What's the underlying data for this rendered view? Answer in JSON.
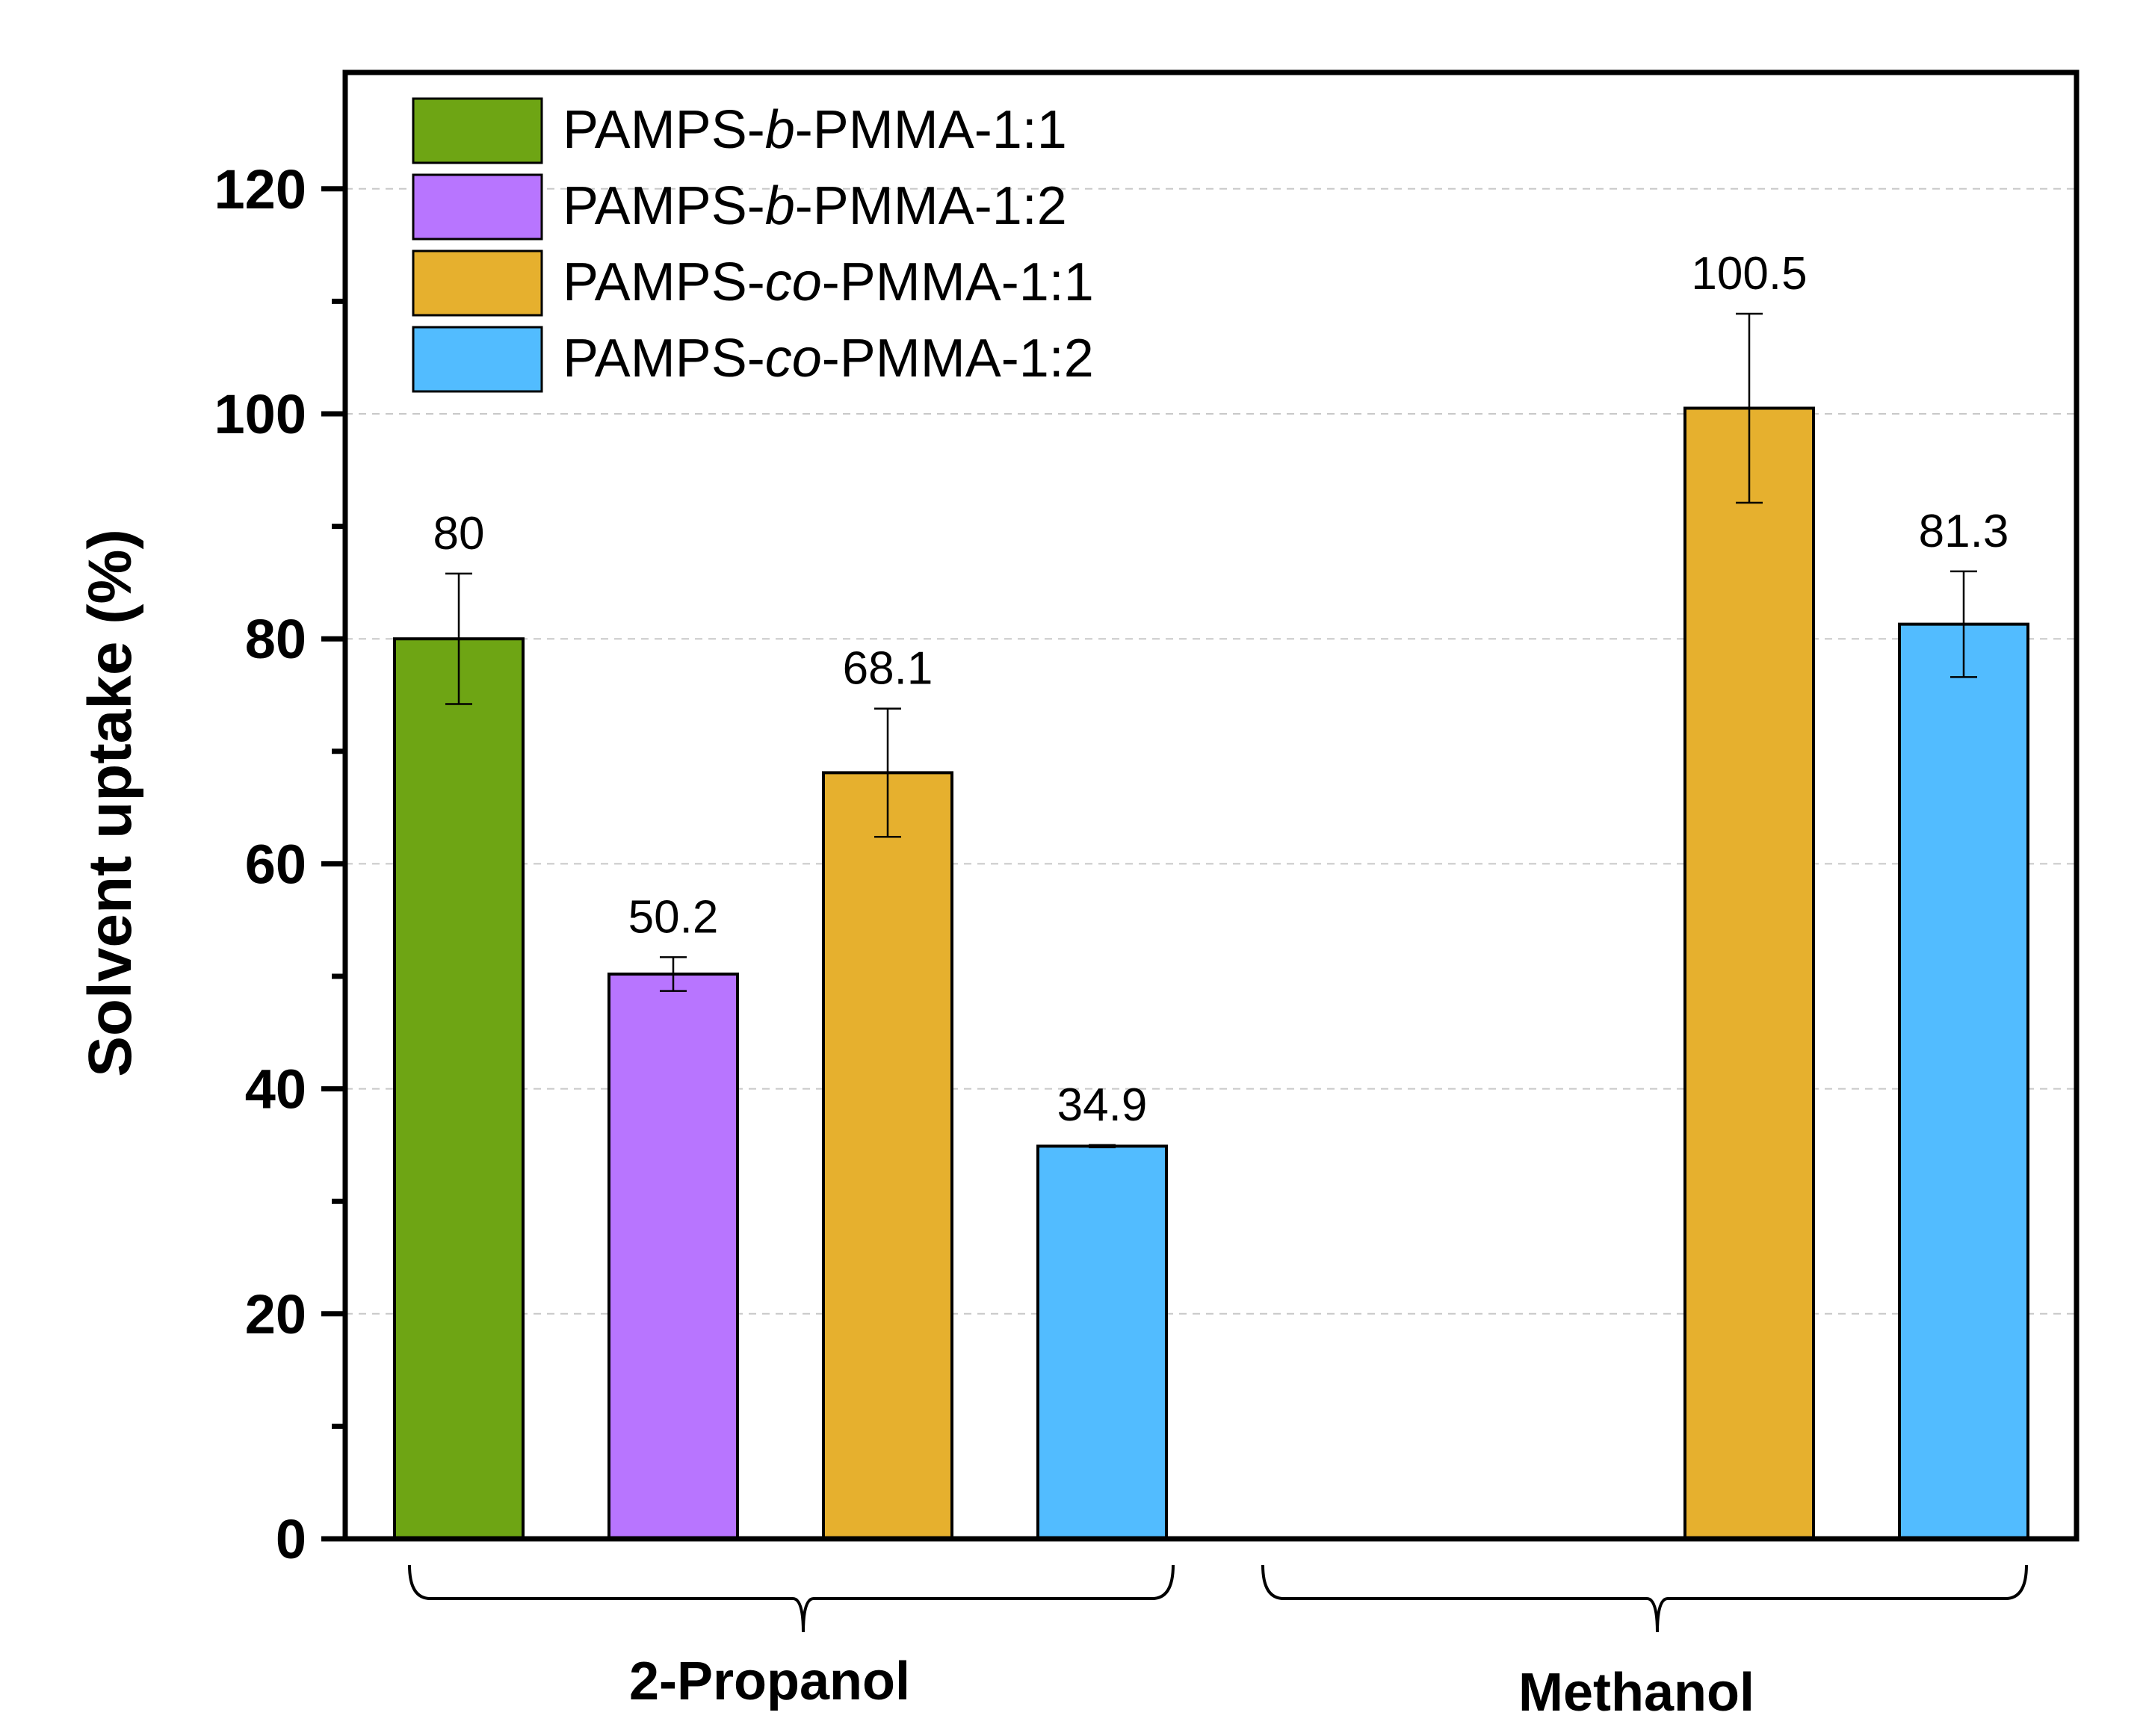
{
  "chart_data": {
    "type": "bar",
    "title": "",
    "xlabel": "",
    "ylabel": "Solvent uptake (%)",
    "ylim": [
      0,
      130
    ],
    "yticks": [
      0,
      20,
      40,
      60,
      80,
      100,
      120
    ],
    "grid": "horizontal dashed",
    "legend_position": "top-left",
    "groups": [
      "2-Propanol",
      "Methanol"
    ],
    "series": [
      {
        "name_prefix": "PAMPS-",
        "name_italic": "b",
        "name_suffix": "-PMMA-1:1",
        "color": "#6ea514",
        "values": [
          80,
          null
        ],
        "errors": [
          5.8,
          null
        ],
        "labels": [
          "80",
          null
        ]
      },
      {
        "name_prefix": "PAMPS-",
        "name_italic": "b",
        "name_suffix": "-PMMA-1:2",
        "color": "#b875ff",
        "values": [
          50.2,
          null
        ],
        "errors": [
          1.5,
          null
        ],
        "labels": [
          "50.2",
          null
        ]
      },
      {
        "name_prefix": "PAMPS-",
        "name_italic": "co",
        "name_suffix": "-PMMA-1:1",
        "color": "#e6b02e",
        "values": [
          68.1,
          100.5
        ],
        "errors": [
          5.7,
          8.4
        ],
        "labels": [
          "68.1",
          "100.5"
        ]
      },
      {
        "name_prefix": "PAMPS-",
        "name_italic": "co",
        "name_suffix": "-PMMA-1:2",
        "color": "#52bcff",
        "values": [
          34.9,
          81.3
        ],
        "errors": [
          0.1,
          4.7
        ],
        "labels": [
          "34.9",
          "81.3"
        ]
      }
    ]
  }
}
